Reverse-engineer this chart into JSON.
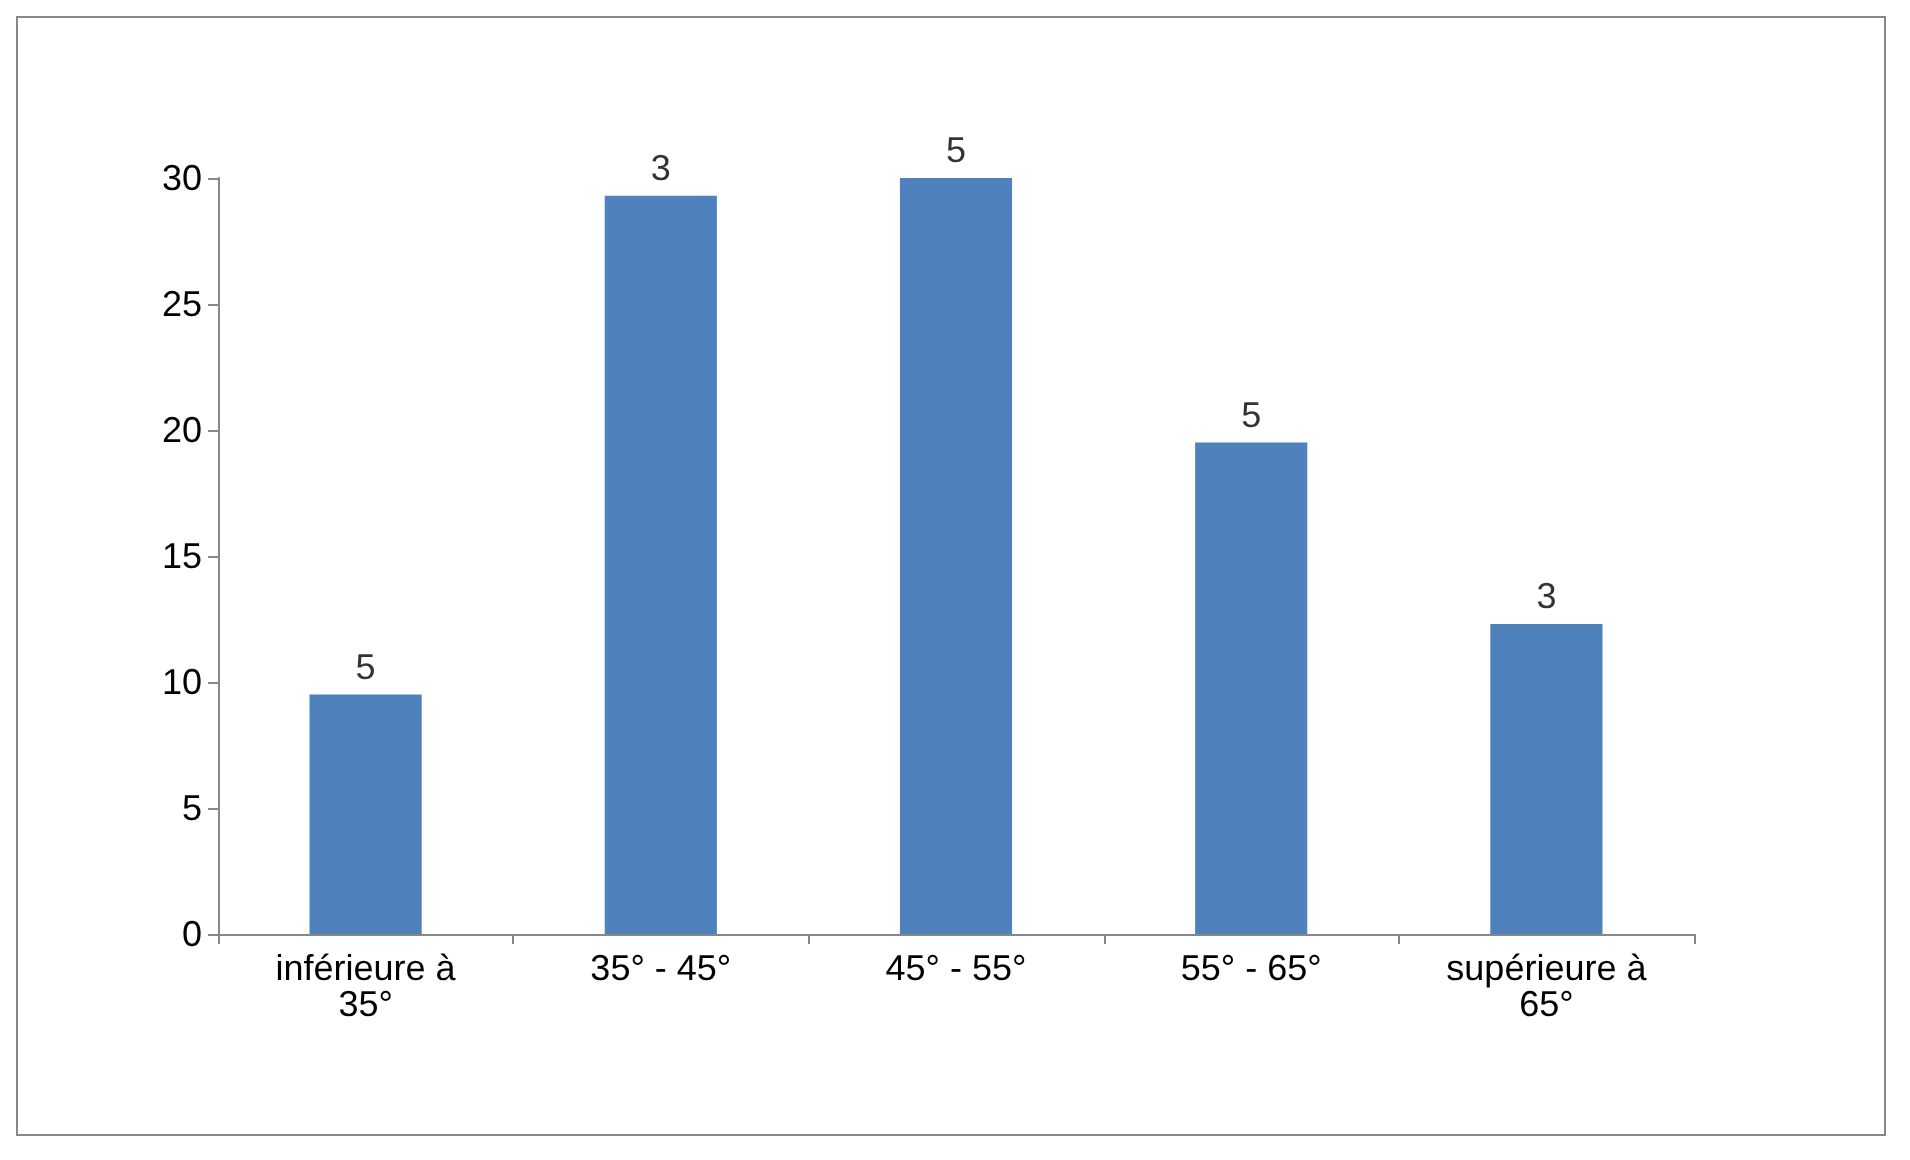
{
  "chart_data": {
    "type": "bar",
    "categories": [
      "inférieure à\n35°",
      "35° - 45°",
      "45° - 55°",
      "55° - 65°",
      "supérieure à\n65°"
    ],
    "values": [
      9.5,
      29.3,
      30,
      19.5,
      12.3
    ],
    "annotations": [
      {
        "text": "5",
        "x": "inférieure à\n35°",
        "y": 9.5
      },
      {
        "text": "3",
        "x": "35° - 45°",
        "y": 29.3
      },
      {
        "text": "5",
        "x": "45° - 55°",
        "y": 30
      },
      {
        "text": "5",
        "x": "55° - 65°",
        "y": 19.5
      },
      {
        "text": "3",
        "x": "supérieure à\n65°",
        "y": 12.3
      }
    ],
    "color": "#4f81bd",
    "ylim": [
      0,
      30
    ],
    "yticks": [
      0,
      5,
      10,
      15,
      20,
      25,
      30
    ],
    "grid": false
  }
}
